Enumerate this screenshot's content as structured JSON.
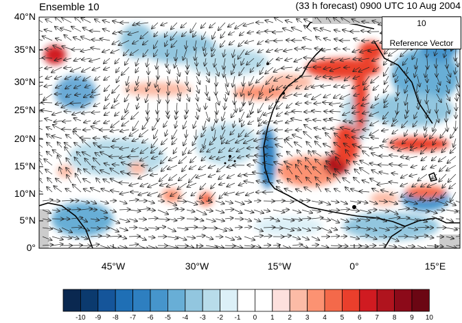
{
  "header": {
    "title_left": "Ensemble 10",
    "title_right": "(33 h forecast) 0900 UTC 10 Aug 2004"
  },
  "map": {
    "lat_labels": [
      "40°N",
      "35°N",
      "30°N",
      "25°N",
      "20°N",
      "15°N",
      "10°N",
      "5°N",
      "0°"
    ],
    "lon_labels": [
      "45°W",
      "30°W",
      "15°W",
      "0°",
      "15°E"
    ],
    "reference_vector": {
      "value": "10",
      "label": "Reference Vector"
    }
  },
  "colorbar": {
    "labels": [
      "-10",
      "-9",
      "-8",
      "-7",
      "-6",
      "-5",
      "-4",
      "-3",
      "-2",
      "-1",
      "0",
      "1",
      "2",
      "3",
      "4",
      "5",
      "6",
      "7",
      "8",
      "9",
      "10"
    ],
    "colors": [
      "#0a2850",
      "#0b3a6e",
      "#15559a",
      "#1f6fb5",
      "#2e7fc0",
      "#4695cc",
      "#68aed6",
      "#92c6df",
      "#b8dcea",
      "#dcf0f7",
      "#ffffff",
      "#ffffff",
      "#fde0dd",
      "#fcbba6",
      "#fc9272",
      "#f4694a",
      "#ea3f2c",
      "#d01b21",
      "#b0141e",
      "#8c0a19",
      "#6b0613"
    ]
  }
}
